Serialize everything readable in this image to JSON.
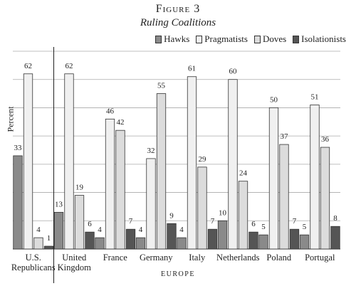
{
  "chart_data": {
    "type": "bar",
    "title": "Figure 3",
    "subtitle": "Ruling Coalitions",
    "y_label": "Percent",
    "x_label": "EUROPE",
    "categories": [
      "U.S. Republicans",
      "United Kingdom",
      "France",
      "Germany",
      "Italy",
      "Netherlands",
      "Poland",
      "Portugal"
    ],
    "series": [
      {
        "name": "Hawks",
        "color": "#8a8a8a",
        "values": [
          33,
          13,
          4,
          4,
          4,
          10,
          5,
          5
        ]
      },
      {
        "name": "Pragmatists",
        "color": "#f0f0f0",
        "values": [
          62,
          62,
          46,
          32,
          61,
          60,
          50,
          51
        ]
      },
      {
        "name": "Doves",
        "color": "#dcdcdc",
        "values": [
          4,
          19,
          42,
          55,
          29,
          24,
          37,
          36
        ]
      },
      {
        "name": "Isolationists",
        "color": "#555555",
        "values": [
          1,
          6,
          7,
          9,
          7,
          6,
          7,
          8
        ]
      }
    ],
    "ylim": [
      0,
      70
    ],
    "gridlines": [
      10,
      20,
      30,
      40,
      50,
      60,
      70
    ],
    "grid": true,
    "legend": "top-right"
  }
}
